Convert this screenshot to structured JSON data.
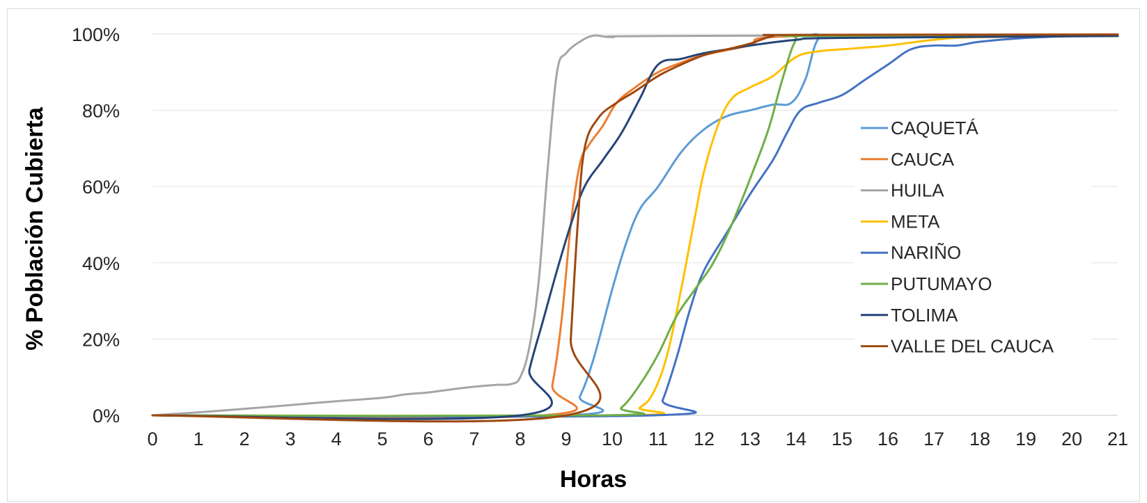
{
  "chart_data": {
    "type": "line",
    "title": "",
    "xlabel": "Horas",
    "ylabel": "% Población Cubierta",
    "xlim": [
      0,
      21
    ],
    "ylim": [
      0,
      100
    ],
    "x_ticks": [
      0,
      1,
      2,
      3,
      4,
      5,
      6,
      7,
      8,
      9,
      10,
      11,
      12,
      13,
      14,
      15,
      16,
      17,
      18,
      19,
      20,
      21
    ],
    "x_tick_labels": [
      "0",
      "1",
      "2",
      "3",
      "4",
      "5",
      "6",
      "7",
      "8",
      "9",
      "10",
      "11",
      "12",
      "13",
      "14",
      "15",
      "16",
      "17",
      "18",
      "19",
      "20",
      "21"
    ],
    "y_ticks": [
      0,
      20,
      40,
      60,
      80,
      100
    ],
    "y_tick_labels": [
      "0%",
      "20%",
      "40%",
      "60%",
      "80%",
      "100%"
    ],
    "grid": true,
    "legend_position": "right",
    "series": [
      {
        "name": "CAQUETÁ",
        "color": "#5b9bd5",
        "points": [
          [
            0,
            0
          ],
          [
            9,
            0
          ],
          [
            9.3,
            5
          ],
          [
            9.6,
            15
          ],
          [
            10,
            33
          ],
          [
            10.3,
            45
          ],
          [
            10.6,
            54
          ],
          [
            11,
            60
          ],
          [
            11.5,
            69
          ],
          [
            12,
            75
          ],
          [
            12.5,
            78.5
          ],
          [
            13,
            80
          ],
          [
            13.5,
            81.5
          ],
          [
            13.9,
            82
          ],
          [
            14.2,
            88
          ],
          [
            14.5,
            99
          ],
          [
            15,
            99.3
          ],
          [
            21,
            99.5
          ]
        ]
      },
      {
        "name": "CAUCA",
        "color": "#ed7d31",
        "points": [
          [
            0,
            0
          ],
          [
            8.5,
            0
          ],
          [
            8.7,
            8
          ],
          [
            8.9,
            25
          ],
          [
            9.1,
            50
          ],
          [
            9.3,
            66
          ],
          [
            9.5,
            71
          ],
          [
            9.8,
            76
          ],
          [
            10.1,
            82
          ],
          [
            10.5,
            86
          ],
          [
            11,
            90
          ],
          [
            11.5,
            92.5
          ],
          [
            12,
            94.5
          ],
          [
            13,
            97
          ],
          [
            14,
            99.5
          ],
          [
            21,
            99.8
          ]
        ]
      },
      {
        "name": "HUILA",
        "color": "#a5a5a5",
        "points": [
          [
            0,
            0
          ],
          [
            1,
            0.8
          ],
          [
            2,
            1.7
          ],
          [
            3,
            2.7
          ],
          [
            4,
            3.7
          ],
          [
            5,
            4.6
          ],
          [
            5.5,
            5.5
          ],
          [
            6,
            6
          ],
          [
            6.5,
            6.8
          ],
          [
            7,
            7.5
          ],
          [
            7.5,
            8
          ],
          [
            7.8,
            8.2
          ],
          [
            8,
            10
          ],
          [
            8.2,
            18
          ],
          [
            8.4,
            35
          ],
          [
            8.6,
            65
          ],
          [
            8.8,
            90
          ],
          [
            9,
            95
          ],
          [
            9.3,
            98
          ],
          [
            9.6,
            99.6
          ],
          [
            10,
            99.2
          ],
          [
            11,
            99.5
          ],
          [
            21,
            99.8
          ]
        ]
      },
      {
        "name": "META",
        "color": "#ffc000",
        "points": [
          [
            0,
            0
          ],
          [
            10.2,
            0
          ],
          [
            10.6,
            2
          ],
          [
            10.9,
            6
          ],
          [
            11.2,
            16
          ],
          [
            11.5,
            33
          ],
          [
            11.8,
            52
          ],
          [
            12,
            64
          ],
          [
            12.3,
            76
          ],
          [
            12.6,
            83
          ],
          [
            13,
            86
          ],
          [
            13.5,
            89
          ],
          [
            14,
            94
          ],
          [
            14.5,
            95.5
          ],
          [
            15,
            96
          ],
          [
            16,
            97
          ],
          [
            17,
            98.5
          ],
          [
            18,
            99.2
          ],
          [
            21,
            99.5
          ]
        ]
      },
      {
        "name": "NARIÑO",
        "color": "#4472c4",
        "points": [
          [
            0,
            0
          ],
          [
            10.9,
            0
          ],
          [
            11.1,
            4
          ],
          [
            11.4,
            15
          ],
          [
            11.7,
            28
          ],
          [
            12,
            38
          ],
          [
            12.5,
            48
          ],
          [
            13,
            58
          ],
          [
            13.5,
            67
          ],
          [
            13.8,
            74
          ],
          [
            14.1,
            80
          ],
          [
            14.5,
            82
          ],
          [
            15,
            84
          ],
          [
            15.5,
            88
          ],
          [
            16,
            92
          ],
          [
            16.5,
            96
          ],
          [
            17,
            97
          ],
          [
            17.5,
            97
          ],
          [
            18,
            98
          ],
          [
            19,
            99
          ],
          [
            20,
            99.5
          ],
          [
            21,
            99.8
          ]
        ]
      },
      {
        "name": "PUTUMAYO",
        "color": "#70ad47",
        "points": [
          [
            0,
            0
          ],
          [
            9.8,
            0
          ],
          [
            10.2,
            2
          ],
          [
            10.6,
            8
          ],
          [
            11,
            16
          ],
          [
            11.4,
            26
          ],
          [
            11.8,
            33
          ],
          [
            12.2,
            40
          ],
          [
            12.6,
            50
          ],
          [
            13,
            62
          ],
          [
            13.4,
            75
          ],
          [
            13.7,
            88
          ],
          [
            14,
            98.5
          ],
          [
            14.3,
            99.5
          ],
          [
            21,
            99.7
          ]
        ]
      },
      {
        "name": "TOLIMA",
        "color": "#264478",
        "points": [
          [
            0,
            0
          ],
          [
            8,
            0
          ],
          [
            8.2,
            12
          ],
          [
            8.5,
            25
          ],
          [
            8.8,
            38
          ],
          [
            9.1,
            50
          ],
          [
            9.4,
            60
          ],
          [
            9.8,
            67
          ],
          [
            10.2,
            74
          ],
          [
            10.6,
            83
          ],
          [
            11,
            92
          ],
          [
            11.5,
            93.5
          ],
          [
            12,
            95
          ],
          [
            12.5,
            96
          ],
          [
            13,
            97
          ],
          [
            14,
            98.5
          ],
          [
            15,
            99
          ],
          [
            21,
            99.5
          ]
        ]
      },
      {
        "name": "VALLE DEL CAUCA",
        "color": "#9e480e",
        "points": [
          [
            0,
            0
          ],
          [
            9,
            0
          ],
          [
            9.1,
            20
          ],
          [
            9.25,
            50
          ],
          [
            9.4,
            70
          ],
          [
            9.7,
            78
          ],
          [
            10.1,
            82
          ],
          [
            10.5,
            85
          ],
          [
            11,
            89
          ],
          [
            11.5,
            92
          ],
          [
            12,
            94.5
          ],
          [
            12.5,
            96
          ],
          [
            13,
            97.5
          ],
          [
            13.5,
            99.5
          ],
          [
            14,
            99.8
          ],
          [
            21,
            99.9
          ]
        ]
      }
    ]
  }
}
